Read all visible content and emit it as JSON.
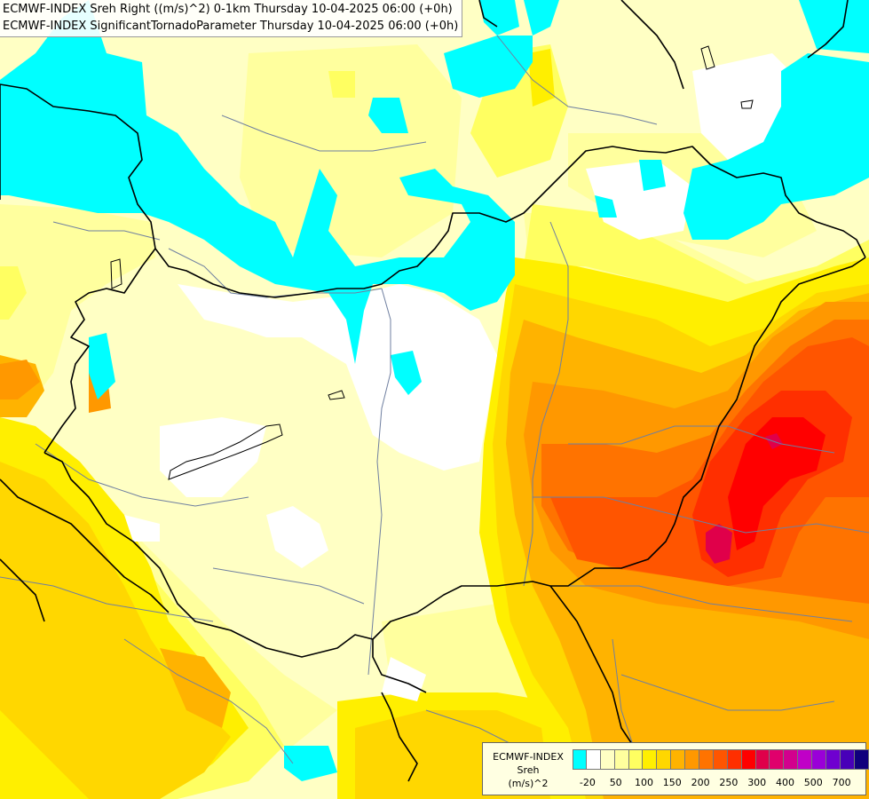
{
  "titles": {
    "line1": "ECMWF-INDEX Sreh Right ((m/s)^2) 0-1km Thursday 10-04-2025 06:00 (+0h)",
    "line2": "ECMWF-INDEX SignificantTornadoParameter Thursday 10-04-2025 06:00 (+0h)"
  },
  "legend": {
    "title_lines": [
      "ECMWF-INDEX",
      "Sreh",
      "(m/s)^2"
    ],
    "colors": [
      "#00ffff",
      "#ffffff",
      "#ffffc4",
      "#ffff9e",
      "#ffff61",
      "#ffef00",
      "#ffd700",
      "#ffb300",
      "#ff9800",
      "#ff7300",
      "#ff5500",
      "#ff2f00",
      "#ff0000",
      "#e0004a",
      "#e0006c",
      "#d2008d",
      "#c000c7",
      "#9a00d8",
      "#6f00d0",
      "#4800b8",
      "#10007d"
    ],
    "tick_labels": [
      "-20",
      "50",
      "100",
      "150",
      "200",
      "250",
      "300",
      "400",
      "500",
      "700"
    ]
  },
  "colors": {
    "background": "#ffffc4",
    "cyan": "#00ffff",
    "white": "#ffffff",
    "light_yellow": "#ffff9e",
    "yellow": "#ffff61",
    "gold": "#ffef00",
    "amber": "#ffd700",
    "orange": "#ffb300",
    "dark_orange": "#ff9800",
    "red_orange": "#ff5500",
    "red": "#ff0000",
    "crimson": "#e0004a",
    "border": "#000000",
    "river": "#6f7fa0"
  }
}
